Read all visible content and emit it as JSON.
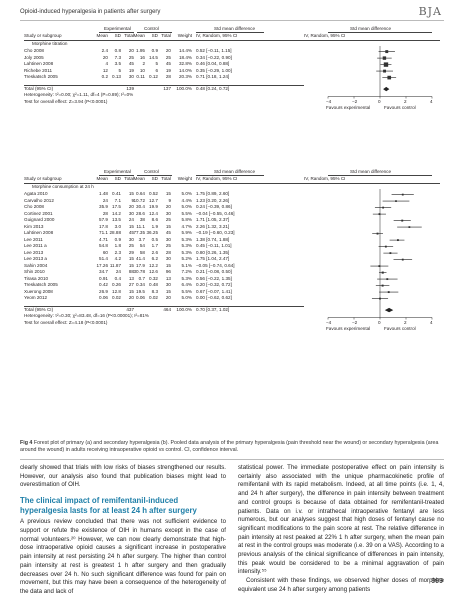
{
  "header": {
    "running_title": "Opioid-induced hyperalgesia in patients after surgery",
    "journal": "BJA"
  },
  "chart_data": [
    {
      "type": "forest",
      "panel": "a",
      "columns": [
        "Study or subgroup",
        "Mean",
        "SD",
        "Total",
        "Mean",
        "SD",
        "Total",
        "Weight",
        "IV, Random, 95% CI",
        "IV, Random, 95% CI"
      ],
      "group_headers": [
        "Experimental",
        "Control",
        "Std mean difference",
        "Std mean difference"
      ],
      "subgroup": "Morphine titration",
      "rows": [
        {
          "study": "Cho 2008",
          "e_mean": "2.4",
          "e_sd": "0.8",
          "e_n": "20",
          "c_mean": "1.95",
          "c_sd": "0.9",
          "c_n": "20",
          "weight": "14.4%",
          "ci": "0.52 [−0.11, 1.15]",
          "smd": 0.52,
          "lo": -0.11,
          "hi": 1.15
        },
        {
          "study": "Joly 2005",
          "e_mean": "20",
          "e_sd": "7.3",
          "e_n": "25",
          "c_mean": "16",
          "c_sd": "14.5",
          "c_n": "25",
          "weight": "18.4%",
          "ci": "0.34 [−0.22, 0.90]",
          "smd": 0.34,
          "lo": -0.22,
          "hi": 0.9
        },
        {
          "study": "Lahtinen 2008",
          "e_mean": "4",
          "e_sd": "3.5",
          "e_n": "45",
          "c_mean": "2",
          "c_sd": "5",
          "c_n": "45",
          "weight": "32.8%",
          "ci": "0.46 [0.04, 0.88]",
          "smd": 0.46,
          "lo": 0.04,
          "hi": 0.88
        },
        {
          "study": "Richebe 2011",
          "e_mean": "12",
          "e_sd": "5",
          "e_n": "19",
          "c_mean": "10",
          "c_sd": "6",
          "c_n": "19",
          "weight": "14.0%",
          "ci": "0.35 [−0.29, 1.00]",
          "smd": 0.35,
          "lo": -0.29,
          "hi": 1.0
        },
        {
          "study": "Treskatsch 2005",
          "e_mean": "0.2",
          "e_sd": "0.13",
          "e_n": "30",
          "c_mean": "0.11",
          "c_sd": "0.12",
          "c_n": "28",
          "weight": "20.3%",
          "ci": "0.71 [0.18, 1.24]",
          "smd": 0.71,
          "lo": 0.18,
          "hi": 1.24
        }
      ],
      "total": {
        "label": "Total (95% CI)",
        "e_n": "139",
        "c_n": "137",
        "weight": "100.0%",
        "ci": "0.48 [0.24, 0.72]",
        "smd": 0.48,
        "lo": 0.24,
        "hi": 0.72
      },
      "heterogeneity": "Heterogeneity: τ²=0.00; χ²=1.11, df=4 (P=0.89); I²=0%",
      "overall": "Test for overall effect: Z=3.94 (P<0.0001)",
      "xlim": [
        -4,
        4
      ],
      "ticks": [
        "−4",
        "−2",
        "0",
        "2",
        "4"
      ],
      "favours_left": "Favours experimental",
      "favours_right": "Favours control"
    },
    {
      "type": "forest",
      "panel": "b",
      "columns": [
        "Study or subgroup",
        "Mean",
        "SD",
        "Total",
        "Mean",
        "SD",
        "Total",
        "Weight",
        "IV, Random, 95% CI",
        "IV, Random, 95% CI"
      ],
      "group_headers": [
        "Experimental",
        "Control",
        "Std mean difference",
        "Std mean difference"
      ],
      "subgroup": "Morphine consumption at 24 h",
      "rows": [
        {
          "study": "Agata 2010",
          "e_mean": "1.48",
          "e_sd": "0.41",
          "e_n": "15",
          "c_mean": "0.64",
          "c_sd": "0.52",
          "c_n": "15",
          "weight": "5.0%",
          "ci": "1.75 [0.89, 2.60]",
          "smd": 1.75,
          "lo": 0.89,
          "hi": 2.6
        },
        {
          "study": "Carvalho 2012",
          "e_mean": "24",
          "e_sd": "7.1",
          "e_n": "9",
          "c_mean": "10.72",
          "c_sd": "12.7",
          "c_n": "9",
          "weight": "4.4%",
          "ci": "1.23 [0.20, 2.26]",
          "smd": 1.23,
          "lo": 0.2,
          "hi": 2.26
        },
        {
          "study": "Cho 2008",
          "e_mean": "35.9",
          "e_sd": "17.5",
          "e_n": "20",
          "c_mean": "30.4",
          "c_sd": "19.9",
          "c_n": "20",
          "weight": "5.0%",
          "ci": "0.24 [−0.39, 0.86]",
          "smd": 0.24,
          "lo": -0.39,
          "hi": 0.86
        },
        {
          "study": "Cortinez 2001",
          "e_mean": "28",
          "e_sd": "14.2",
          "e_n": "30",
          "c_mean": "28.6",
          "c_sd": "12.4",
          "c_n": "30",
          "weight": "5.5%",
          "ci": "−0.04 [−0.55, 0.46]",
          "smd": -0.04,
          "lo": -0.55,
          "hi": 0.46
        },
        {
          "study": "Guignard 2000",
          "e_mean": "57.9",
          "e_sd": "13.5",
          "e_n": "24",
          "c_mean": "38",
          "c_sd": "8.6",
          "c_n": "25",
          "weight": "5.8%",
          "ci": "1.71 [1.05, 2.37]",
          "smd": 1.71,
          "lo": 1.05,
          "hi": 2.37
        },
        {
          "study": "Kim 2013",
          "e_mean": "17.8",
          "e_sd": "3.0",
          "e_n": "15",
          "c_mean": "11.1",
          "c_sd": "1.9",
          "c_n": "15",
          "weight": "4.7%",
          "ci": "2.26 [1.32, 3.21]",
          "smd": 2.26,
          "lo": 1.32,
          "hi": 3.21
        },
        {
          "study": "Lahtinen 2008",
          "e_mean": "71.1",
          "e_sd": "28.88",
          "e_n": "45",
          "c_mean": "77.35",
          "c_sd": "36.25",
          "c_n": "45",
          "weight": "5.9%",
          "ci": "−0.19 [−0.60, 0.23]",
          "smd": -0.19,
          "lo": -0.6,
          "hi": 0.23
        },
        {
          "study": "Lee 2011",
          "e_mean": "4.71",
          "e_sd": "0.9",
          "e_n": "30",
          "c_mean": "3.7",
          "c_sd": "0.5",
          "c_n": "30",
          "weight": "5.3%",
          "ci": "1.38 [0.74, 1.88]",
          "smd": 1.38,
          "lo": 0.74,
          "hi": 1.88
        },
        {
          "study": "Lee 2011 a",
          "e_mean": "54.8",
          "e_sd": "1.8",
          "e_n": "25",
          "c_mean": "54",
          "c_sd": "1.7",
          "c_n": "25",
          "weight": "5.3%",
          "ci": "0.45 [−0.11, 1.01]",
          "smd": 0.45,
          "lo": -0.11,
          "hi": 1.01
        },
        {
          "study": "Lee 2013",
          "e_mean": "60",
          "e_sd": "2.3",
          "e_n": "29",
          "c_mean": "58",
          "c_sd": "2.6",
          "c_n": "28",
          "weight": "5.3%",
          "ci": "0.80 [0.26, 1.35]",
          "smd": 0.8,
          "lo": 0.26,
          "hi": 1.35
        },
        {
          "study": "Lee 2013 a",
          "e_mean": "51.4",
          "e_sd": "4.2",
          "e_n": "15",
          "c_mean": "41.4",
          "c_sd": "6.2",
          "c_n": "30",
          "weight": "5.2%",
          "ci": "1.75 [1.04, 2.47]",
          "smd": 1.75,
          "lo": 1.04,
          "hi": 2.47
        },
        {
          "study": "Sahin 2004",
          "e_mean": "17.26",
          "e_sd": "11.87",
          "e_n": "15",
          "c_mean": "17.9",
          "c_sd": "12.2",
          "c_n": "15",
          "weight": "5.1%",
          "ci": "−0.05 [−0.74, 0.64]",
          "smd": -0.05,
          "lo": -0.74,
          "hi": 0.64
        },
        {
          "study": "Shin 2010",
          "e_mean": "34.7",
          "e_sd": "24",
          "e_n": "88",
          "c_mean": "30.78",
          "c_sd": "12.6",
          "c_n": "96",
          "weight": "7.2%",
          "ci": "0.21 [−0.08, 0.50]",
          "smd": 0.21,
          "lo": -0.08,
          "hi": 0.5
        },
        {
          "study": "Tirasa 2010",
          "e_mean": "0.91",
          "e_sd": "0.4",
          "e_n": "13",
          "c_mean": "0.7",
          "c_sd": "0.32",
          "c_n": "13",
          "weight": "5.3%",
          "ci": "0.56 [−0.22, 1.35]",
          "smd": 0.56,
          "lo": -0.22,
          "hi": 1.35
        },
        {
          "study": "Treskatsch 2005",
          "e_mean": "0.42",
          "e_sd": "0.26",
          "e_n": "27",
          "c_mean": "0.34",
          "c_sd": "0.48",
          "c_n": "30",
          "weight": "6.4%",
          "ci": "0.20 [−0.32, 0.72]",
          "smd": 0.2,
          "lo": -0.32,
          "hi": 0.72
        },
        {
          "study": "Xuerong 2008",
          "e_mean": "26.9",
          "e_sd": "12.8",
          "e_n": "15",
          "c_mean": "19.5",
          "c_sd": "8.3",
          "c_n": "15",
          "weight": "5.5%",
          "ci": "0.67 [−0.07, 1.41]",
          "smd": 0.67,
          "lo": -0.07,
          "hi": 1.41
        },
        {
          "study": "Yeom 2012",
          "e_mean": "0.06",
          "e_sd": "0.02",
          "e_n": "20",
          "c_mean": "0.06",
          "c_sd": "0.02",
          "c_n": "20",
          "weight": "5.0%",
          "ci": "0.00 [−0.62, 0.62]",
          "smd": 0.0,
          "lo": -0.62,
          "hi": 0.62
        }
      ],
      "total": {
        "label": "Total (95% CI)",
        "e_n": "437",
        "c_n": "464",
        "weight": "100.0%",
        "ci": "0.70 [0.37, 1.02]",
        "smd": 0.7,
        "lo": 0.37,
        "hi": 1.02
      },
      "heterogeneity": "Heterogeneity: τ²=0.30; χ²=83.48, df=16 (P<0.00001); I²=81%",
      "overall": "Test for overall effect: Z=4.18 (P<0.0001)",
      "xlim": [
        -4,
        4
      ],
      "ticks": [
        "−4",
        "−2",
        "0",
        "2",
        "4"
      ],
      "favours_left": "Favours experimental",
      "favours_right": "Favours control"
    }
  ],
  "caption": {
    "label": "Fig 4",
    "text": " Forest plot of primary (a) and secondary hyperalgesia (b). Pooled data analysis of the primary hyperalgesia (pain threshold near the wound) or secondary hyperalgesia (area around the wound) in adults receiving intraoperative opioid vs control. CI, confidence interval."
  },
  "body": {
    "left_p1": "clearly showed that trials with low risks of biases strengthened our results. However, our analysis also found that publication biases might lead to overestimation of OIH.",
    "heading": "The clinical impact of remifentanil-induced hyperalgesia lasts for at least 24 h after surgery",
    "left_p2": "A previous review concluded that there was not sufficient evidence to support or refute the existence of OIH in humans except in the case of normal volunteers.²⁰ However, we can now clearly demonstrate that high-dose intraoperative opioid causes a significant increase in postoperative pain intensity at rest persisting 24 h after surgery. The higher than control pain intensity at rest is greatest 1 h after surgery and then gradually decreases over 24 h. No such significant difference was found for pain on movement, but this may have been a consequence of the heterogeneity of the data and lack of",
    "right_p1": "statistical power. The immediate postoperative effect on pain intensity is certainly also associated with the unique pharmacokinetic profile of remifentanil with its rapid metabolism. Indeed, at all time points (i.e. 1, 4, and 24 h after surgery), the difference in pain intensity between treatment and control groups is because of data obtained for remifentanil-treated patients. Data on i.v. or intrathecal intraoperative fentanyl are less numerous, but our analyses suggest that high doses of fentanyl cause no significant modifications to the pain score at rest. The relative difference in pain intensity at rest peaked at 22% 1 h after surgery, when the mean pain at rest in the control groups was moderate (i.e. 39 on a VAS). According to a previous analysis of the clinical significance of differences in pain intensity, this peak would be considered to be a minimal aggravation of pain intensity.⁵⁵",
    "right_p2": "Consistent with these findings, we observed higher doses of morphine equivalent use 24 h after surgery among patients"
  },
  "page_number": "999",
  "colors": {
    "heading": "#1f7fa8",
    "marker": "#333333"
  }
}
